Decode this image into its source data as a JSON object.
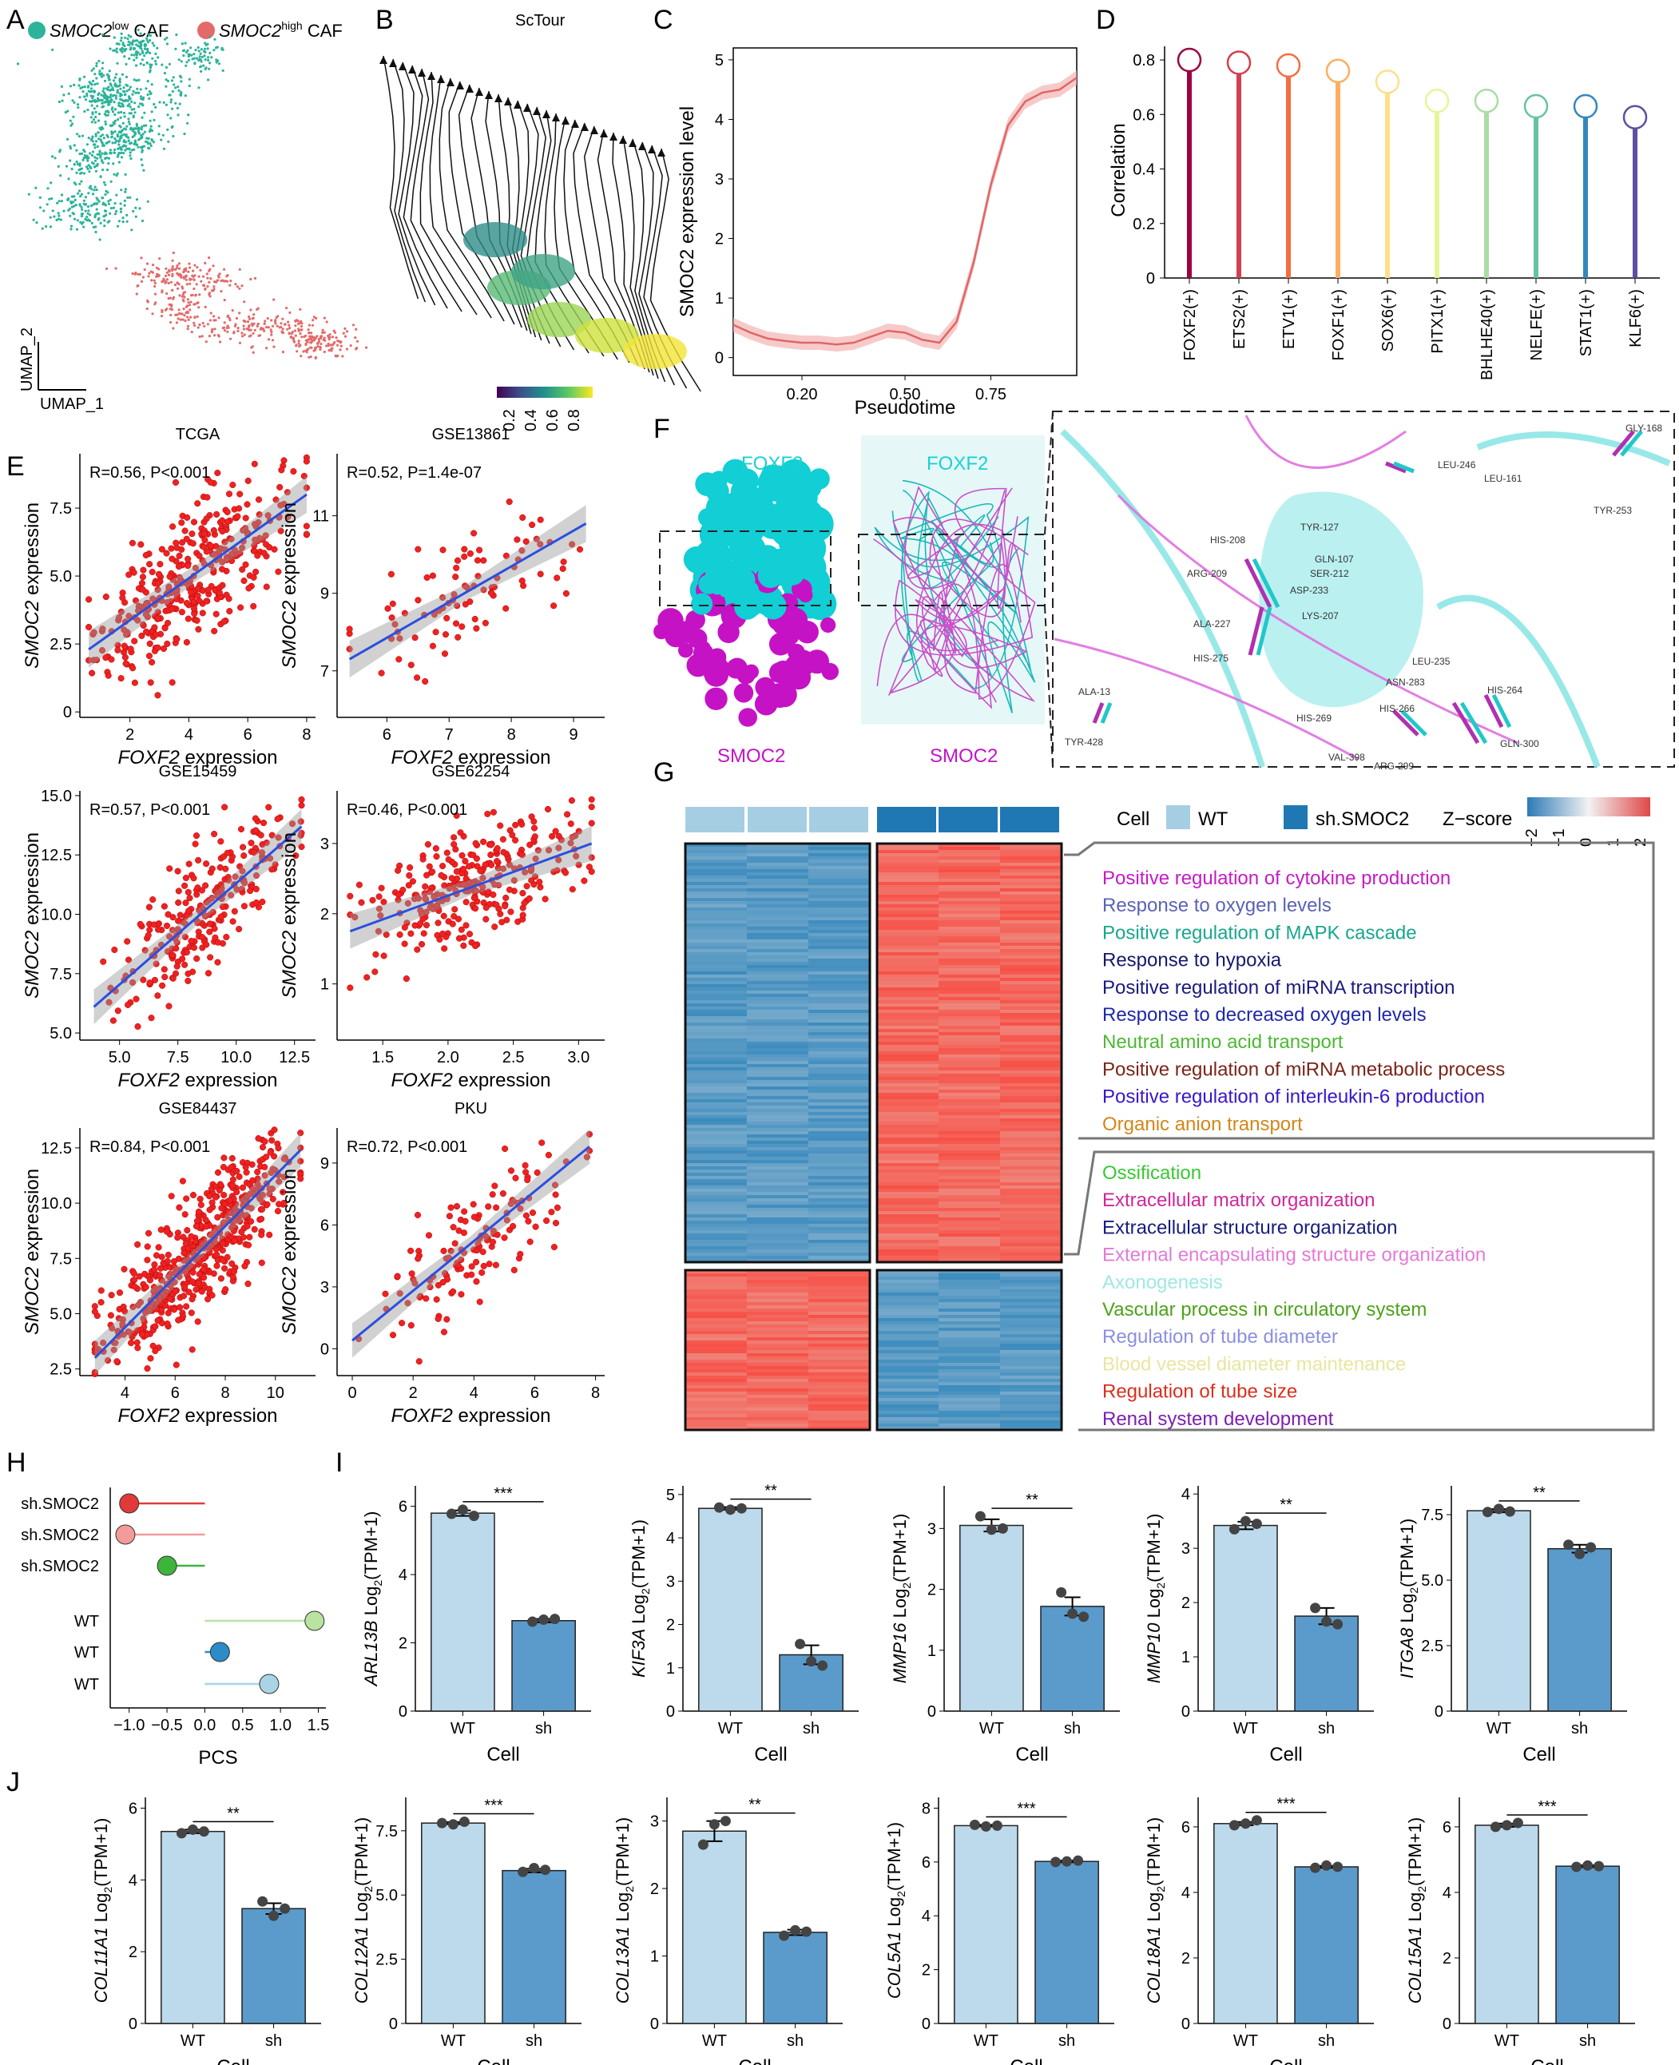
{
  "panels": [
    "A",
    "B",
    "C",
    "D",
    "E",
    "F",
    "G",
    "H",
    "I",
    "J"
  ],
  "panelA": {
    "legend": [
      {
        "gene": "SMOC2",
        "sup": "low",
        "suffix": " CAF",
        "color": "#2cb39a"
      },
      {
        "gene": "SMOC2",
        "sup": "high",
        "suffix": " CAF",
        "color": "#e46a6a"
      }
    ],
    "xlabel": "UMAP_1",
    "ylabel": "UMAP_2"
  },
  "panelB": {
    "title": "ScTour",
    "colorbar_ticks": [
      "0.2",
      "0.4",
      "0.6",
      "0.8"
    ]
  },
  "panelC": {
    "chart_data": {
      "type": "line",
      "ylabel": "SMOC2 expression level",
      "xlabel": "Pseudotime",
      "xticks": [
        "0.20",
        "0.50",
        "0.75"
      ],
      "yticks": [
        "0",
        "1",
        "2",
        "3",
        "4",
        "5"
      ],
      "x": [
        0.0,
        0.05,
        0.1,
        0.15,
        0.2,
        0.25,
        0.3,
        0.35,
        0.4,
        0.45,
        0.5,
        0.55,
        0.6,
        0.65,
        0.7,
        0.75,
        0.8,
        0.85,
        0.9,
        0.95,
        1.0
      ],
      "y": [
        0.55,
        0.42,
        0.32,
        0.28,
        0.25,
        0.25,
        0.22,
        0.25,
        0.35,
        0.45,
        0.42,
        0.3,
        0.25,
        0.6,
        1.6,
        2.9,
        3.9,
        4.3,
        4.45,
        4.5,
        4.7
      ],
      "xlim": [
        0,
        1
      ],
      "ylim": [
        -0.3,
        5.2
      ],
      "color": "#e06666"
    }
  },
  "panelD": {
    "chart_data": {
      "type": "lollipop",
      "ylabel": "Correlation",
      "categories": [
        "FOXF2(+)",
        "ETS2(+)",
        "ETV1(+)",
        "FOXF1(+)",
        "SOX6(+)",
        "PITX1(+)",
        "BHLHE40(+)",
        "NELFE(+)",
        "STAT1(+)",
        "KLF6(+)"
      ],
      "values": [
        0.8,
        0.79,
        0.78,
        0.76,
        0.72,
        0.65,
        0.65,
        0.63,
        0.63,
        0.59
      ],
      "colors": [
        "#9e0142",
        "#d53e4f",
        "#f46d43",
        "#fdae61",
        "#fee08b",
        "#e6f598",
        "#abdda4",
        "#66c2a5",
        "#3288bd",
        "#5e4fa2"
      ],
      "yticks": [
        "0",
        "0.2",
        "0.4",
        "0.6",
        "0.8"
      ],
      "ylim": [
        0,
        0.85
      ]
    }
  },
  "panelE": {
    "chart_data": [
      {
        "title": "TCGA",
        "stat": "R=0.56, P<0.001",
        "xlabel": "FOXF2 expression",
        "ylabel": "SMOC2 expression",
        "xticks": [
          "2",
          "4",
          "6",
          "8"
        ],
        "yticks": [
          "0",
          "2.5",
          "5.0",
          "7.5"
        ],
        "xlim": [
          0.3,
          8.3
        ],
        "ylim": [
          -0.2,
          9.5
        ],
        "fit": [
          [
            0.6,
            2.3
          ],
          [
            8,
            8
          ]
        ]
      },
      {
        "title": "GSE13861",
        "stat": "R=0.52, P=1.4e-07",
        "xlabel": "FOXF2 expression",
        "ylabel": "SMOC2 expression",
        "xticks": [
          "6",
          "7",
          "8",
          "9"
        ],
        "yticks": [
          "7",
          "9",
          "11"
        ],
        "xlim": [
          5.2,
          9.5
        ],
        "ylim": [
          5.8,
          12.6
        ],
        "fit": [
          [
            5.4,
            7.3
          ],
          [
            9.2,
            10.8
          ]
        ]
      },
      {
        "title": "GSE15459",
        "stat": "R=0.57, P<0.001",
        "xlabel": "FOXF2 expression",
        "ylabel": "SMOC2 expression",
        "xticks": [
          "5.0",
          "7.5",
          "10.0",
          "12.5"
        ],
        "yticks": [
          "5.0",
          "7.5",
          "10.0",
          "12.5",
          "15.0"
        ],
        "xlim": [
          3.3,
          13.4
        ],
        "ylim": [
          4.7,
          15.2
        ],
        "fit": [
          [
            3.9,
            6.1
          ],
          [
            12.8,
            13.7
          ]
        ]
      },
      {
        "title": "GSE62254",
        "stat": "R=0.46, P<0.001",
        "xlabel": "FOXF2 expression",
        "ylabel": "SMOC2 expression",
        "xticks": [
          "1.5",
          "2.0",
          "2.5",
          "3.0"
        ],
        "yticks": [
          "1",
          "2",
          "3"
        ],
        "xlim": [
          1.15,
          3.2
        ],
        "ylim": [
          0.2,
          3.75
        ],
        "fit": [
          [
            1.25,
            1.75
          ],
          [
            3.1,
            3.0
          ]
        ]
      },
      {
        "title": "GSE84437",
        "stat": "R=0.84, P<0.001",
        "xlabel": "FOXF2 expression",
        "ylabel": "SMOC2 expression",
        "xticks": [
          "4",
          "6",
          "8",
          "10"
        ],
        "yticks": [
          "2.5",
          "5.0",
          "7.5",
          "10.0",
          "12.5"
        ],
        "xlim": [
          2.2,
          11.6
        ],
        "ylim": [
          2.2,
          13.4
        ],
        "fit": [
          [
            2.8,
            3.0
          ],
          [
            11,
            12.4
          ]
        ]
      },
      {
        "title": "PKU",
        "stat": "R=0.72, P<0.001",
        "xlabel": "FOXF2 expression",
        "ylabel": "SMOC2 expression",
        "xticks": [
          "0",
          "2",
          "4",
          "6",
          "8"
        ],
        "yticks": [
          "0",
          "3",
          "6",
          "9"
        ],
        "xlim": [
          -0.5,
          8.3
        ],
        "ylim": [
          -1.3,
          10.7
        ],
        "fit": [
          [
            0,
            0.4
          ],
          [
            7.8,
            9.8
          ]
        ]
      }
    ]
  },
  "panelF": {
    "labels": [
      "FOXF2",
      "SMOC2",
      "FOXF2",
      "SMOC2"
    ],
    "residues": [
      "GLY-168",
      "LEU-246",
      "LEU-161",
      "TYR-253",
      "HIS-208",
      "TYR-127",
      "ARG-209",
      "GLN-107",
      "SER-212",
      "ASP-233",
      "ALA-227",
      "LYS-207",
      "HIS-275",
      "LEU-235",
      "ASN-283",
      "HIS-264",
      "ALA-13",
      "HIS-269",
      "HIS-266",
      "TYR-428",
      "VAL-398",
      "ARG-299",
      "GLN-300"
    ]
  },
  "panelG": {
    "legend": {
      "cell_label": "Cell",
      "wt": "WT",
      "sh": "sh.SMOC2",
      "zscore": "Z−score",
      "zticks": [
        "−2",
        "−1",
        "0",
        "1",
        "2"
      ]
    },
    "go_up": [
      {
        "t": "Positive regulation of cytokine production",
        "c": "#c51bc5"
      },
      {
        "t": "Response to oxygen levels",
        "c": "#5a63b3"
      },
      {
        "t": "Positive regulation of MAPK cascade",
        "c": "#19a68e"
      },
      {
        "t": "Response to hypoxia",
        "c": "#14196b"
      },
      {
        "t": "Positive regulation of miRNA transcription",
        "c": "#1a1a80"
      },
      {
        "t": "Response to decreased oxygen levels",
        "c": "#1f28a8"
      },
      {
        "t": "Neutral amino acid transport",
        "c": "#4cb832"
      },
      {
        "t": "Positive regulation of miRNA metabolic process",
        "c": "#7a2418"
      },
      {
        "t": "Positive regulation of interleukin-6 production",
        "c": "#3a16c8"
      },
      {
        "t": "Organic anion transport",
        "c": "#d3861b"
      }
    ],
    "go_down": [
      {
        "t": "Ossification",
        "c": "#38c833"
      },
      {
        "t": "Extracellular matrix organization",
        "c": "#d0279a"
      },
      {
        "t": "Extracellular structure organization",
        "c": "#161c7d"
      },
      {
        "t": "External encapsulating structure organization",
        "c": "#e27ad8"
      },
      {
        "t": "Axonogenesis",
        "c": "#9fe8e3"
      },
      {
        "t": "Vascular process in circulatory system",
        "c": "#4ca218"
      },
      {
        "t": "Regulation of tube diameter",
        "c": "#8d8fe0"
      },
      {
        "t": "Blood vessel diameter maintenance",
        "c": "#e8e6a0"
      },
      {
        "t": "Regulation of tube size",
        "c": "#d92f1c"
      },
      {
        "t": "Renal system development",
        "c": "#7d1fb0"
      }
    ]
  },
  "panelH": {
    "chart_data": {
      "type": "lollipop",
      "xlabel": "PCS",
      "categories": [
        "sh.SMOC2",
        "sh.SMOC2",
        "sh.SMOC2",
        "WT",
        "WT",
        "WT"
      ],
      "values": [
        -1.0,
        -1.05,
        -0.5,
        1.45,
        0.2,
        0.85
      ],
      "colors": [
        "#e03a3a",
        "#f39a9a",
        "#3db53d",
        "#b8e3a0",
        "#2b8cc8",
        "#a8d4e6"
      ],
      "xticks": [
        "−1.0",
        "−0.5",
        "0.0",
        "0.5",
        "1.0",
        "1.5"
      ],
      "xlim": [
        -1.25,
        1.6
      ]
    }
  },
  "barCommon": {
    "xcats": [
      "WT",
      "sh"
    ],
    "xlabel": "Cell",
    "ylabel_suffix": " Log",
    "ylabel_sub": "2",
    "ylabel_tail": "(TPM+1)",
    "wt_color": "#bcdaec",
    "sh_color": "#5b9bcc"
  },
  "panelI": {
    "chart_data": [
      {
        "gene": "ARL13B",
        "values": [
          5.8,
          2.65
        ],
        "err": [
          0.08,
          0.05
        ],
        "pts": [
          [
            5.78,
            5.9,
            5.72
          ],
          [
            2.62,
            2.68,
            2.7
          ]
        ],
        "sig": "***",
        "yticks": [
          "0",
          "2",
          "4",
          "6"
        ],
        "ylim": [
          0,
          6.6
        ]
      },
      {
        "gene": "KIF3A",
        "values": [
          4.68,
          1.3
        ],
        "err": [
          0.03,
          0.22
        ],
        "pts": [
          [
            4.7,
            4.65,
            4.68
          ],
          [
            1.55,
            1.15,
            1.05
          ]
        ],
        "sig": "**",
        "yticks": [
          "0",
          "1",
          "2",
          "3",
          "4",
          "5"
        ],
        "ylim": [
          0,
          5.2
        ]
      },
      {
        "gene": "MMP16",
        "values": [
          3.05,
          1.72
        ],
        "err": [
          0.1,
          0.15
        ],
        "pts": [
          [
            3.2,
            2.98,
            3.0
          ],
          [
            1.95,
            1.6,
            1.55
          ]
        ],
        "sig": "**",
        "yticks": [
          "0",
          "1",
          "2",
          "3"
        ],
        "ylim": [
          0,
          3.7
        ]
      },
      {
        "gene": "MMP10",
        "values": [
          3.42,
          1.75
        ],
        "err": [
          0.07,
          0.15
        ],
        "pts": [
          [
            3.35,
            3.5,
            3.45
          ],
          [
            1.9,
            1.65,
            1.6
          ]
        ],
        "sig": "**",
        "yticks": [
          "0",
          "1",
          "2",
          "3",
          "4"
        ],
        "ylim": [
          0,
          4.15
        ]
      },
      {
        "gene": "ITGA8",
        "values": [
          7.65,
          6.2
        ],
        "err": [
          0.06,
          0.15
        ],
        "pts": [
          [
            7.6,
            7.72,
            7.62
          ],
          [
            6.35,
            6.0,
            6.25
          ]
        ],
        "sig": "**",
        "yticks": [
          "0",
          "2.5",
          "5.0",
          "7.5"
        ],
        "ylim": [
          0,
          8.6
        ]
      }
    ]
  },
  "panelJ": {
    "chart_data": [
      {
        "gene": "COL11A1",
        "values": [
          5.35,
          3.2
        ],
        "err": [
          0.05,
          0.15
        ],
        "pts": [
          [
            5.3,
            5.4,
            5.35
          ],
          [
            3.4,
            3.0,
            3.2
          ]
        ],
        "sig": "**",
        "yticks": [
          "0",
          "2",
          "4",
          "6"
        ],
        "ylim": [
          0,
          6.3
        ]
      },
      {
        "gene": "COL12A1",
        "values": [
          7.8,
          5.95
        ],
        "err": [
          0.04,
          0.07
        ],
        "pts": [
          [
            7.8,
            7.75,
            7.85
          ],
          [
            5.9,
            6.05,
            5.98
          ]
        ],
        "sig": "***",
        "yticks": [
          "0",
          "2.5",
          "5.0",
          "7.5"
        ],
        "ylim": [
          0,
          8.8
        ]
      },
      {
        "gene": "COL13A1",
        "values": [
          2.85,
          1.35
        ],
        "err": [
          0.15,
          0.04
        ],
        "pts": [
          [
            2.65,
            2.95,
            3.0
          ],
          [
            1.3,
            1.38,
            1.36
          ]
        ],
        "sig": "**",
        "yticks": [
          "0",
          "1",
          "2",
          "3"
        ],
        "ylim": [
          0,
          3.35
        ]
      },
      {
        "gene": "COL5A1",
        "values": [
          7.35,
          6.02
        ],
        "err": [
          0.03,
          0.03
        ],
        "pts": [
          [
            7.38,
            7.32,
            7.35
          ],
          [
            6.0,
            6.02,
            6.05
          ]
        ],
        "sig": "***",
        "yticks": [
          "0",
          "2",
          "4",
          "6",
          "8"
        ],
        "ylim": [
          0,
          8.4
        ]
      },
      {
        "gene": "COL18A1",
        "values": [
          6.1,
          4.78
        ],
        "err": [
          0.05,
          0.03
        ],
        "pts": [
          [
            6.05,
            6.1,
            6.2
          ],
          [
            4.75,
            4.82,
            4.78
          ]
        ],
        "sig": "***",
        "yticks": [
          "0",
          "2",
          "4",
          "6"
        ],
        "ylim": [
          0,
          6.9
        ]
      },
      {
        "gene": "COL15A1",
        "values": [
          6.05,
          4.8
        ],
        "err": [
          0.05,
          0.03
        ],
        "pts": [
          [
            6.0,
            6.05,
            6.12
          ],
          [
            4.78,
            4.82,
            4.8
          ]
        ],
        "sig": "***",
        "yticks": [
          "0",
          "2",
          "4",
          "6"
        ],
        "ylim": [
          0,
          6.9
        ]
      }
    ]
  }
}
